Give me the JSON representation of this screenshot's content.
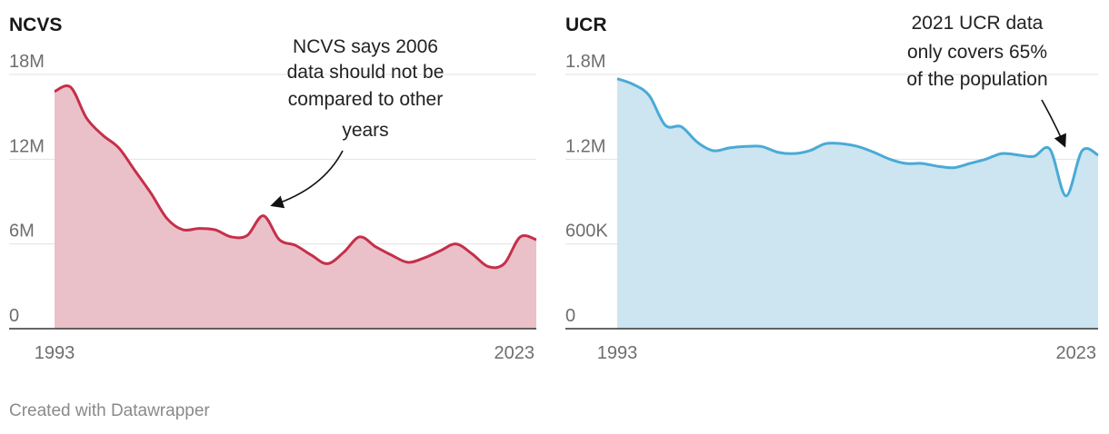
{
  "chart_data": [
    {
      "type": "area",
      "title": "NCVS",
      "x": [
        1993,
        1994,
        1995,
        1996,
        1997,
        1998,
        1999,
        2000,
        2001,
        2002,
        2003,
        2004,
        2005,
        2006,
        2007,
        2008,
        2009,
        2010,
        2011,
        2012,
        2013,
        2014,
        2015,
        2016,
        2017,
        2018,
        2019,
        2020,
        2021,
        2022,
        2023
      ],
      "values": [
        16.8,
        17.1,
        14.9,
        13.7,
        12.8,
        11.2,
        9.6,
        7.8,
        7.0,
        7.1,
        7.0,
        6.5,
        6.6,
        8.0,
        6.3,
        5.9,
        5.2,
        4.6,
        5.4,
        6.5,
        5.8,
        5.2,
        4.7,
        5.0,
        5.5,
        6.0,
        5.3,
        4.4,
        4.6,
        6.5,
        6.3
      ],
      "ylim": [
        0,
        18
      ],
      "yticks": [
        0,
        6,
        12,
        18
      ],
      "ytick_labels": [
        "0",
        "6M",
        "12M",
        "18M"
      ],
      "xtick_labels": [
        "1993",
        "2023"
      ],
      "color": "#c4304a",
      "fill": "#ebc1c9",
      "annotation": {
        "lines": [
          "NCVS says 2006",
          "data should not be",
          "compared to other",
          "years"
        ],
        "target_year": 2006
      }
    },
    {
      "type": "area",
      "title": "UCR",
      "x": [
        1993,
        1994,
        1995,
        1996,
        1997,
        1998,
        1999,
        2000,
        2001,
        2002,
        2003,
        2004,
        2005,
        2006,
        2007,
        2008,
        2009,
        2010,
        2011,
        2012,
        2013,
        2014,
        2015,
        2016,
        2017,
        2018,
        2019,
        2020,
        2021,
        2022,
        2023
      ],
      "values": [
        1.77,
        1.73,
        1.65,
        1.44,
        1.43,
        1.32,
        1.26,
        1.28,
        1.29,
        1.29,
        1.25,
        1.24,
        1.26,
        1.31,
        1.31,
        1.29,
        1.25,
        1.2,
        1.17,
        1.17,
        1.15,
        1.14,
        1.17,
        1.2,
        1.24,
        1.23,
        1.22,
        1.27,
        0.94,
        1.26,
        1.23
      ],
      "ylim": [
        0,
        1.8
      ],
      "yticks": [
        0,
        0.6,
        1.2,
        1.8
      ],
      "ytick_labels": [
        "0",
        "600K",
        "1.2M",
        "1.8M"
      ],
      "xtick_labels": [
        "1993",
        "2023"
      ],
      "color": "#4aaad6",
      "fill": "#cce5f0",
      "annotation": {
        "lines": [
          "2021 UCR data",
          "only covers 65%",
          "of the population"
        ],
        "target_year": 2021
      }
    }
  ],
  "footer": {
    "credit": "Created with Datawrapper"
  }
}
